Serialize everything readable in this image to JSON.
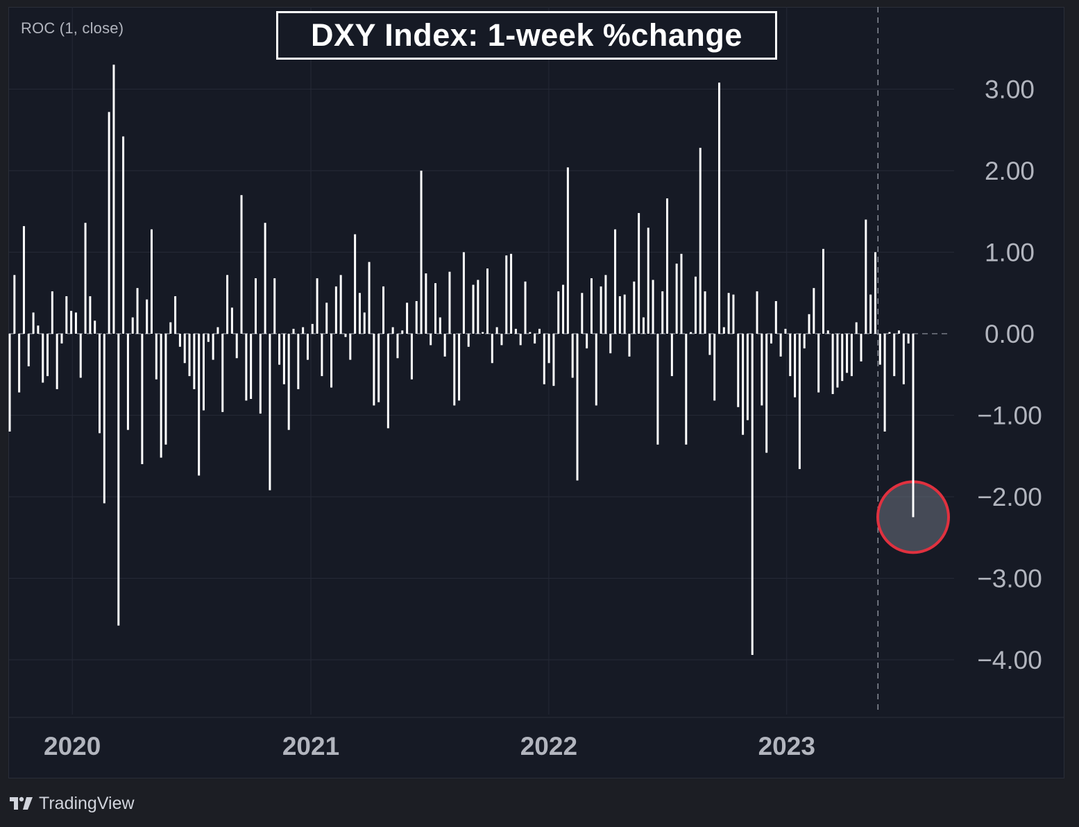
{
  "indicator_label": "ROC (1, close)",
  "title": "DXY Index: 1-week %change",
  "branding": "TradingView",
  "colors": {
    "background": "#161a25",
    "bars": "#ffffff",
    "grid": "#252936",
    "axis_text": "#b2b5be",
    "highlight_ring": "#e0313f"
  },
  "chart_data": {
    "type": "bar",
    "title": "DXY Index: 1-week %change",
    "xlabel": "",
    "ylabel": "",
    "ylim": [
      -4.4,
      3.45
    ],
    "grid": true,
    "y_ticks": [
      {
        "value": 3,
        "label": "3.00"
      },
      {
        "value": 2,
        "label": "2.00"
      },
      {
        "value": 1,
        "label": "1.00"
      },
      {
        "value": 0,
        "label": "0.00"
      },
      {
        "value": -1,
        "label": "−1.00"
      },
      {
        "value": -2,
        "label": "−2.00"
      },
      {
        "value": -3,
        "label": "−3.00"
      },
      {
        "value": -4,
        "label": "−4.00"
      }
    ],
    "x_ticks": [
      "2020",
      "2021",
      "2022",
      "2023"
    ],
    "x_start": "2019-09-27",
    "x_end": "2023-07-14",
    "vertical_marker_date": "2023-05-21",
    "highlighted_point": {
      "date": "2023-07-14",
      "value": -2.25
    },
    "values": [
      -1.2,
      0.72,
      -0.72,
      1.32,
      -0.4,
      0.26,
      0.1,
      -0.6,
      -0.52,
      0.52,
      -0.68,
      -0.12,
      0.46,
      0.28,
      0.26,
      -0.54,
      1.36,
      0.46,
      0.16,
      -1.22,
      -2.08,
      2.72,
      3.3,
      -3.58,
      2.42,
      -1.18,
      0.2,
      0.56,
      -1.6,
      0.42,
      1.28,
      -0.56,
      -1.52,
      -1.36,
      0.14,
      0.46,
      -0.16,
      -0.36,
      -0.52,
      -0.68,
      -1.74,
      -0.94,
      -0.1,
      -0.32,
      0.08,
      -0.96,
      0.72,
      0.32,
      -0.3,
      1.7,
      -0.82,
      -0.8,
      0.68,
      -0.98,
      1.36,
      -1.92,
      0.68,
      -0.38,
      -0.62,
      -1.18,
      0.06,
      -0.68,
      0.08,
      -0.32,
      0.12,
      0.68,
      -0.52,
      0.38,
      -0.66,
      0.58,
      0.72,
      -0.04,
      -0.32,
      1.22,
      0.5,
      0.26,
      0.88,
      -0.88,
      -0.84,
      0.58,
      -1.16,
      0.08,
      -0.3,
      0.04,
      0.38,
      -0.56,
      0.4,
      2.0,
      0.74,
      -0.14,
      0.62,
      0.2,
      -0.28,
      0.76,
      -0.88,
      -0.82,
      1.0,
      -0.16,
      0.6,
      0.66,
      0.02,
      0.8,
      -0.36,
      0.08,
      -0.14,
      0.96,
      0.98,
      0.06,
      -0.14,
      0.64,
      0.02,
      -0.12,
      0.06,
      -0.62,
      -0.36,
      -0.64,
      0.52,
      0.6,
      2.04,
      -0.54,
      -1.8,
      0.5,
      -0.18,
      0.68,
      -0.88,
      0.58,
      0.72,
      -0.24,
      1.28,
      0.46,
      0.48,
      -0.28,
      0.64,
      1.48,
      0.2,
      1.3,
      0.66,
      -1.36,
      0.52,
      1.66,
      -0.52,
      0.86,
      0.98,
      -1.36,
      0.02,
      0.7,
      2.28,
      0.52,
      -0.26,
      -0.82,
      3.08,
      0.08,
      0.5,
      0.48,
      -0.9,
      -1.24,
      -1.06,
      -3.94,
      0.52,
      -0.88,
      -1.46,
      -0.12,
      0.4,
      -0.28,
      0.06,
      -0.52,
      -0.78,
      -1.66,
      -0.18,
      0.24,
      0.56,
      -0.72,
      1.04,
      0.04,
      -0.74,
      -0.66,
      -0.58,
      -0.48,
      -0.52,
      0.14,
      -0.34,
      1.4,
      0.48,
      1.0,
      -0.38,
      -1.2,
      0.02,
      -0.52,
      0.04,
      -0.62,
      -0.12,
      -2.25
    ]
  }
}
